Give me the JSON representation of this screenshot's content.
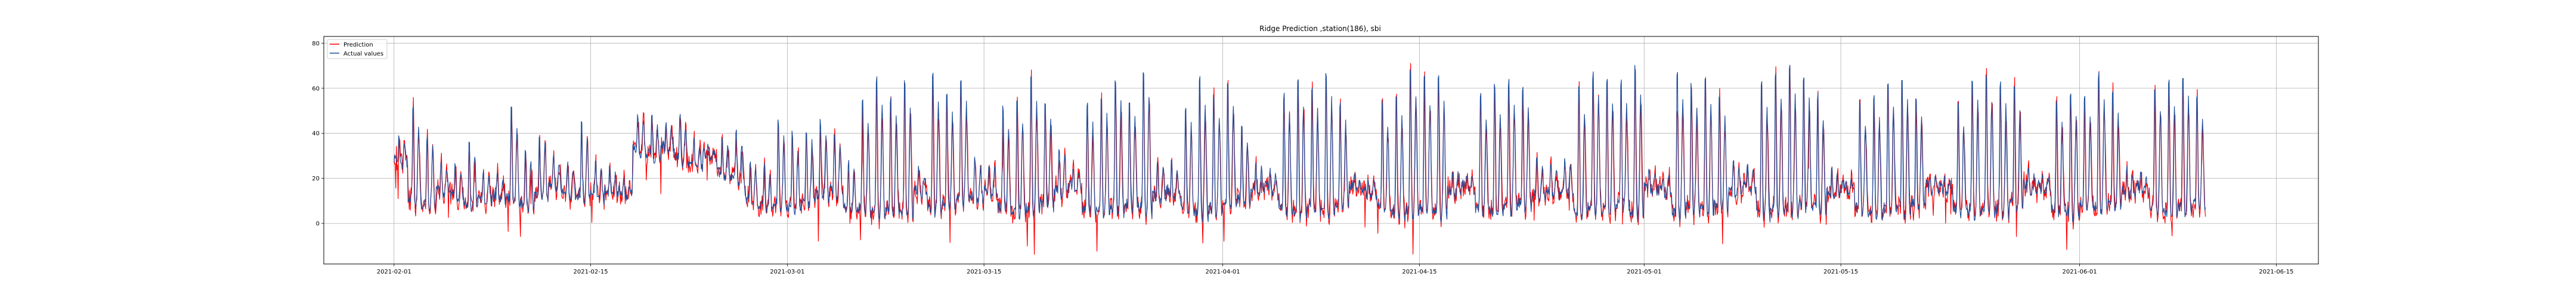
{
  "chart_data": {
    "type": "line",
    "title": "Ridge Prediction ,station(186), sbi",
    "xlabel": "",
    "ylabel": "",
    "x_range": [
      "2021-01-27",
      "2021-06-18"
    ],
    "x_start": "2021-02-01",
    "x_end": "2021-06-10",
    "ylim": [
      -18,
      83
    ],
    "yticks": [
      0,
      20,
      40,
      60,
      80
    ],
    "xticks": [
      {
        "date": "2021-02-01",
        "label": "2021-02-01"
      },
      {
        "date": "2021-02-15",
        "label": "2021-02-15"
      },
      {
        "date": "2021-03-01",
        "label": "2021-03-01"
      },
      {
        "date": "2021-03-15",
        "label": "2021-03-15"
      },
      {
        "date": "2021-04-01",
        "label": "2021-04-01"
      },
      {
        "date": "2021-04-15",
        "label": "2021-04-15"
      },
      {
        "date": "2021-05-01",
        "label": "2021-05-01"
      },
      {
        "date": "2021-05-15",
        "label": "2021-05-15"
      },
      {
        "date": "2021-06-01",
        "label": "2021-06-01"
      },
      {
        "date": "2021-06-15",
        "label": "2021-06-15"
      }
    ],
    "grid": true,
    "legend_position": "top-left",
    "series": [
      {
        "name": "Prediction",
        "color": "#ff0000"
      },
      {
        "name": "Actual values",
        "color": "#1f4e9c"
      }
    ],
    "sampling": "hourly (approximate reconstruction)",
    "daily_peaks": [
      40,
      55,
      42,
      30,
      28,
      38,
      25,
      22,
      55,
      36,
      42,
      30,
      28,
      47,
      30,
      26,
      20,
      50,
      48,
      44,
      49,
      38,
      35,
      40,
      42,
      30,
      28,
      48,
      44,
      45,
      48,
      42,
      30,
      60,
      70,
      60,
      68,
      25,
      72,
      62,
      68,
      30,
      28,
      55,
      60,
      70,
      58,
      35,
      25,
      58,
      62,
      70,
      60,
      72,
      30,
      28,
      56,
      70,
      62,
      68,
      45,
      28,
      24,
      62,
      70,
      65,
      72,
      58,
      22,
      20,
      58,
      62,
      74,
      70,
      72,
      25,
      22,
      62,
      66,
      68,
      64,
      30,
      28,
      30,
      66,
      72,
      70,
      68,
      75,
      25,
      22,
      72,
      66,
      70,
      62,
      30,
      28,
      68,
      72,
      76,
      70,
      62,
      24,
      20,
      58,
      62,
      68,
      70,
      60,
      22,
      20,
      58,
      70,
      72,
      68,
      66,
      24,
      22,
      58,
      64,
      60,
      72,
      62,
      25,
      22,
      66,
      70,
      72,
      62,
      58,
      42,
      36,
      56,
      52,
      60,
      62,
      48,
      35,
      30,
      55,
      58,
      64,
      62,
      54,
      36,
      30,
      60,
      62,
      58,
      55,
      52,
      50,
      48
    ],
    "daily_troughs": [
      25,
      8,
      6,
      12,
      10,
      6,
      8,
      10,
      8,
      6,
      10,
      15,
      12,
      10,
      10,
      12,
      12,
      30,
      28,
      32,
      26,
      24,
      28,
      20,
      18,
      8,
      6,
      6,
      4,
      8,
      10,
      12,
      4,
      4,
      2,
      4,
      2,
      12,
      4,
      6,
      8,
      10,
      12,
      4,
      3,
      4,
      6,
      12,
      14,
      4,
      3,
      4,
      6,
      4,
      10,
      12,
      4,
      2,
      4,
      6,
      8,
      12,
      14,
      4,
      2,
      4,
      3,
      6,
      14,
      12,
      4,
      2,
      3,
      4,
      2,
      12,
      14,
      4,
      2,
      4,
      6,
      10,
      12,
      12,
      2,
      4,
      3,
      6,
      2,
      14,
      12,
      2,
      4,
      3,
      6,
      12,
      14,
      2,
      4,
      3,
      6,
      4,
      12,
      14,
      4,
      2,
      4,
      3,
      6,
      14,
      14,
      4,
      2,
      4,
      3,
      6,
      14,
      14,
      4,
      2,
      6,
      4,
      6,
      12,
      14,
      4,
      2,
      4,
      6,
      8,
      20,
      22,
      10,
      12,
      8,
      6,
      12,
      20,
      22,
      10,
      8,
      6,
      8,
      12,
      22,
      20,
      8,
      10,
      12,
      14,
      18,
      20,
      22
    ]
  }
}
